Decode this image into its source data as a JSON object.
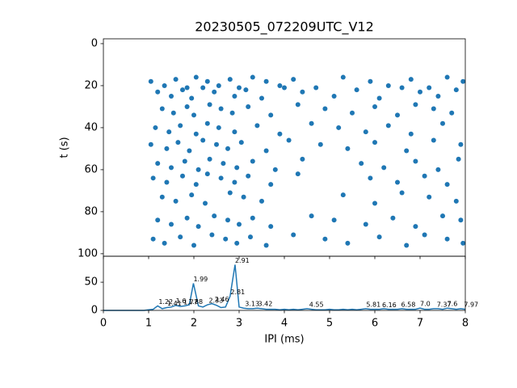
{
  "chart_data": [
    {
      "type": "scatter",
      "title": "20230505_072209UTC_V12",
      "ylabel": "t (s)",
      "color": "#1f77b4",
      "xlim": [
        0,
        8
      ],
      "ylim": [
        -2.3,
        101.2
      ],
      "y_inverted": true,
      "yticks": [
        0,
        20,
        40,
        60,
        80,
        100
      ],
      "x": [
        1.05,
        1.35,
        1.6,
        1.85,
        2.05,
        2.3,
        2.55,
        2.8,
        3.0,
        3.3,
        3.6,
        3.9,
        4.2,
        4.7,
        5.3,
        5.9,
        6.3,
        6.8,
        7.2,
        7.6,
        7.95,
        1.2,
        1.5,
        1.75,
        1.95,
        2.2,
        2.45,
        2.9,
        3.15,
        3.5,
        4.0,
        4.4,
        5.1,
        5.6,
        6.1,
        6.6,
        7.0,
        7.4,
        7.8,
        1.3,
        1.55,
        1.85,
        2.0,
        2.35,
        2.6,
        2.85,
        3.2,
        3.7,
        4.3,
        4.9,
        5.5,
        6.0,
        6.5,
        6.9,
        7.3,
        7.7,
        1.15,
        1.45,
        1.7,
        2.05,
        2.3,
        2.55,
        2.9,
        3.4,
        3.9,
        4.6,
        5.2,
        5.8,
        6.3,
        6.8,
        7.5,
        1.05,
        1.4,
        1.65,
        1.9,
        2.2,
        2.5,
        2.75,
        3.05,
        3.6,
        4.1,
        4.8,
        5.4,
        6.0,
        6.7,
        7.3,
        7.9,
        1.2,
        1.5,
        1.8,
        2.1,
        2.35,
        2.65,
        2.95,
        3.3,
        3.8,
        4.4,
        5.7,
        6.2,
        6.9,
        7.4,
        7.85,
        1.1,
        1.4,
        1.75,
        2.05,
        2.3,
        2.6,
        2.9,
        3.2,
        3.7,
        4.3,
        5.9,
        6.5,
        7.1,
        7.6,
        1.3,
        1.6,
        1.95,
        2.25,
        2.8,
        3.1,
        3.5,
        5.3,
        6.0,
        6.6,
        7.2,
        7.8,
        1.2,
        1.5,
        1.85,
        2.1,
        2.45,
        2.75,
        3.0,
        3.3,
        3.7,
        4.6,
        5.1,
        5.8,
        6.4,
        6.9,
        7.5,
        7.9,
        1.1,
        1.35,
        1.7,
        2.0,
        2.4,
        2.7,
        2.95,
        3.25,
        3.6,
        4.2,
        4.9,
        5.4,
        6.1,
        6.7,
        7.1,
        7.6,
        7.95
      ],
      "y": [
        18,
        20,
        17,
        21,
        16,
        18,
        20,
        17,
        21,
        16,
        18,
        20,
        17,
        21,
        16,
        18,
        20,
        17,
        21,
        16,
        18,
        23,
        25,
        22,
        26,
        21,
        23,
        25,
        22,
        26,
        21,
        23,
        25,
        22,
        26,
        21,
        23,
        25,
        22,
        31,
        33,
        30,
        34,
        29,
        31,
        33,
        30,
        34,
        29,
        31,
        33,
        30,
        34,
        29,
        31,
        33,
        40,
        42,
        39,
        43,
        38,
        40,
        42,
        39,
        43,
        38,
        40,
        42,
        39,
        43,
        38,
        48,
        50,
        47,
        51,
        46,
        48,
        50,
        47,
        51,
        46,
        48,
        50,
        47,
        51,
        46,
        48,
        57,
        59,
        56,
        60,
        55,
        57,
        59,
        56,
        60,
        55,
        57,
        59,
        56,
        60,
        55,
        64,
        66,
        63,
        67,
        62,
        64,
        66,
        63,
        67,
        62,
        64,
        66,
        63,
        67,
        73,
        75,
        72,
        76,
        71,
        73,
        75,
        72,
        76,
        71,
        73,
        75,
        84,
        86,
        83,
        87,
        82,
        84,
        86,
        83,
        87,
        82,
        84,
        86,
        83,
        87,
        82,
        84,
        93,
        95,
        92,
        96,
        91,
        93,
        95,
        92,
        96,
        91,
        93,
        95,
        92,
        96,
        91,
        93,
        95
      ]
    },
    {
      "type": "line",
      "xlabel": "IPI (ms)",
      "color": "#1f77b4",
      "xlim": [
        0,
        8
      ],
      "ylim": [
        0,
        96
      ],
      "xticks": [
        0,
        1,
        2,
        3,
        4,
        5,
        6,
        7,
        8
      ],
      "yticks": [
        0,
        50
      ],
      "x": [
        0,
        0.1,
        0.2,
        0.3,
        0.4,
        0.5,
        0.6,
        0.7,
        0.8,
        0.9,
        1.0,
        1.1,
        1.2,
        1.3,
        1.4,
        1.5,
        1.6,
        1.7,
        1.8,
        1.9,
        1.99,
        2.1,
        2.2,
        2.3,
        2.4,
        2.5,
        2.6,
        2.7,
        2.8,
        2.91,
        3.0,
        3.1,
        3.2,
        3.3,
        3.4,
        3.5,
        3.6,
        3.7,
        3.8,
        3.9,
        4.0,
        4.1,
        4.2,
        4.3,
        4.4,
        4.5,
        4.6,
        4.7,
        4.8,
        4.9,
        5.0,
        5.1,
        5.2,
        5.3,
        5.4,
        5.5,
        5.6,
        5.7,
        5.8,
        5.9,
        6.0,
        6.1,
        6.2,
        6.3,
        6.4,
        6.5,
        6.6,
        6.7,
        6.8,
        6.9,
        7.0,
        7.1,
        7.2,
        7.3,
        7.4,
        7.5,
        7.6,
        7.7,
        7.8,
        7.9,
        8.0
      ],
      "values": [
        0,
        0,
        0,
        0,
        0,
        0,
        0,
        0,
        0,
        0,
        1,
        2,
        8,
        3,
        5,
        6,
        9,
        7,
        8,
        10,
        48,
        8,
        6,
        10,
        12,
        9,
        5,
        6,
        25,
        81,
        6,
        4,
        3,
        3,
        4,
        3,
        2,
        2,
        2,
        1,
        2,
        1,
        2,
        1,
        2,
        3,
        2,
        1,
        1,
        1,
        2,
        1,
        1,
        2,
        1,
        2,
        1,
        2,
        3,
        2,
        2,
        2,
        3,
        2,
        2,
        2,
        3,
        2,
        2,
        2,
        4,
        2,
        2,
        3,
        3,
        2,
        4,
        3,
        2,
        3,
        2
      ],
      "annotations": [
        {
          "x": 1.22,
          "y": 8,
          "text": "1.22"
        },
        {
          "x": 1.41,
          "y": 5,
          "text": "1.41"
        },
        {
          "x": 1.6,
          "y": 9,
          "text": "1.6"
        },
        {
          "x": 1.77,
          "y": 7,
          "text": "1.77"
        },
        {
          "x": 1.88,
          "y": 8,
          "text": "1.88"
        },
        {
          "x": 1.99,
          "y": 48,
          "text": "1.99"
        },
        {
          "x": 2.33,
          "y": 10,
          "text": "2.33"
        },
        {
          "x": 2.46,
          "y": 12,
          "text": "2.46"
        },
        {
          "x": 2.81,
          "y": 25,
          "text": "2.81"
        },
        {
          "x": 2.91,
          "y": 81,
          "text": "2.91"
        },
        {
          "x": 3.13,
          "y": 4,
          "text": "3.13"
        },
        {
          "x": 3.42,
          "y": 4,
          "text": "3.42"
        },
        {
          "x": 4.55,
          "y": 3,
          "text": "4.55"
        },
        {
          "x": 5.81,
          "y": 3,
          "text": "5.81"
        },
        {
          "x": 6.16,
          "y": 2,
          "text": "6.16"
        },
        {
          "x": 6.58,
          "y": 3,
          "text": "6.58"
        },
        {
          "x": 7.0,
          "y": 4,
          "text": "7.0"
        },
        {
          "x": 7.37,
          "y": 3,
          "text": "7.37"
        },
        {
          "x": 7.6,
          "y": 4,
          "text": "7.6"
        },
        {
          "x": 7.97,
          "y": 3,
          "text": "7.97"
        }
      ]
    }
  ]
}
